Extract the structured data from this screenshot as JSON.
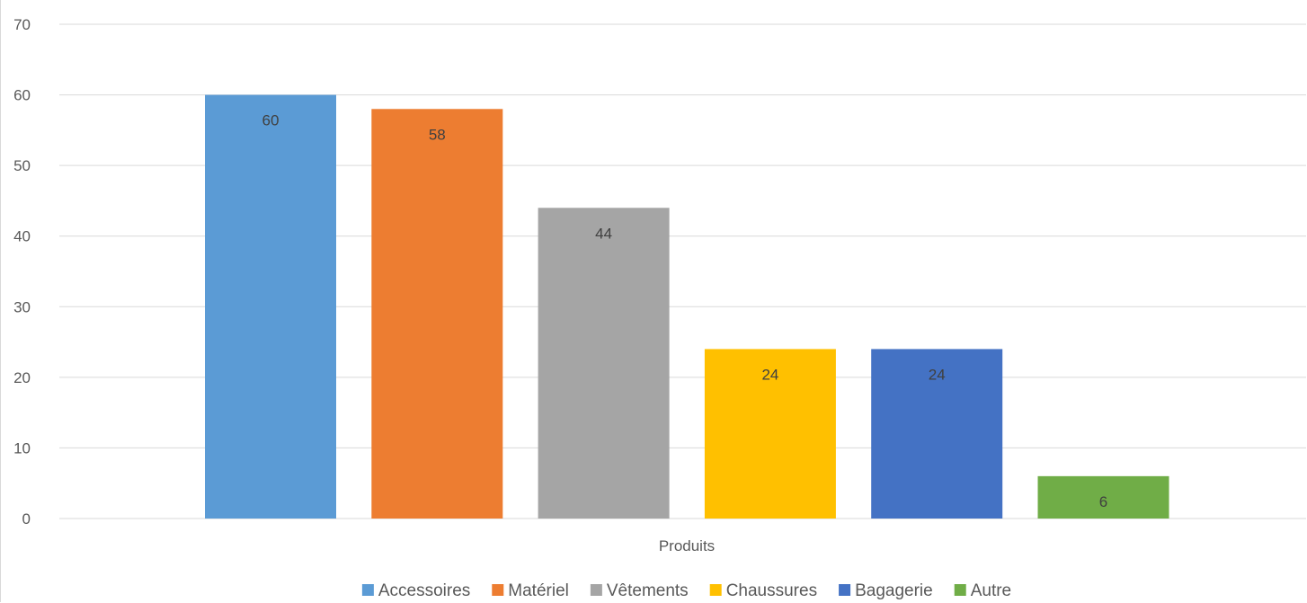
{
  "chart_data": {
    "type": "bar",
    "title": "",
    "xlabel": "Produits",
    "ylabel": "",
    "ylim": [
      0,
      70
    ],
    "yticks": [
      0,
      10,
      20,
      30,
      40,
      50,
      60,
      70
    ],
    "grid": true,
    "legend_position": "bottom",
    "categories": [
      "Produits"
    ],
    "series": [
      {
        "name": "Accessoires",
        "values": [
          60
        ],
        "color": "#5b9bd5"
      },
      {
        "name": "Matériel",
        "values": [
          58
        ],
        "color": "#ed7d31"
      },
      {
        "name": "Vêtements",
        "values": [
          44
        ],
        "color": "#a5a5a5"
      },
      {
        "name": "Chaussures",
        "values": [
          24
        ],
        "color": "#ffc000"
      },
      {
        "name": "Bagagerie",
        "values": [
          24
        ],
        "color": "#4472c4"
      },
      {
        "name": "Autre",
        "values": [
          6
        ],
        "color": "#70ad47"
      }
    ]
  }
}
